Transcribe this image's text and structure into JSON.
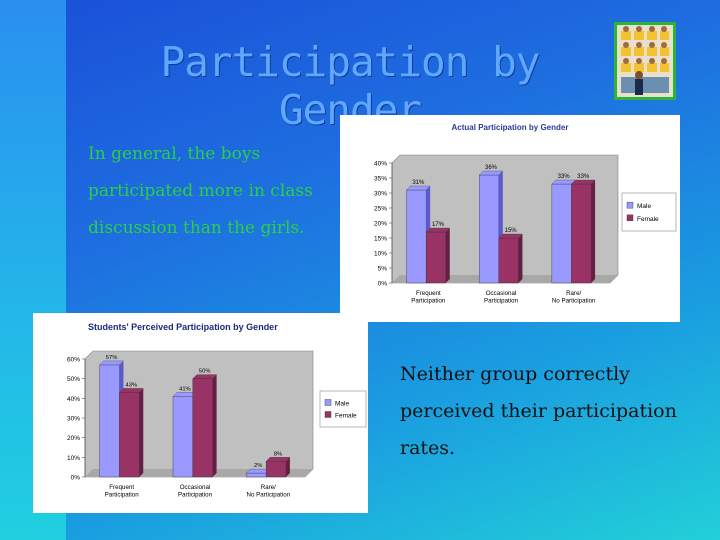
{
  "slide": {
    "title": "Participation by Gender",
    "text_left": "In general, the boys participated more in class discussion than the girls.",
    "text_right": "Neither group correctly perceived their participation rates."
  },
  "colors": {
    "male": "#9999ff",
    "female": "#993366",
    "plot_bg": "#c0c0c0"
  },
  "chart_data": [
    {
      "type": "bar",
      "title": "Actual Participation by Gender",
      "categories": [
        "Frequent Participation",
        "Occasional Participation",
        "Rare/ No Participation"
      ],
      "ylim": [
        0,
        40
      ],
      "yticks": [
        "0%",
        "5%",
        "10%",
        "15%",
        "20%",
        "25%",
        "30%",
        "35%",
        "40%"
      ],
      "series": [
        {
          "name": "Male",
          "values": [
            31,
            36,
            33
          ],
          "labels": [
            "31%",
            "36%",
            "33%"
          ]
        },
        {
          "name": "Female",
          "values": [
            17,
            15,
            33
          ],
          "labels": [
            "17%",
            "15%",
            "33%"
          ]
        }
      ],
      "legend": "right"
    },
    {
      "type": "bar",
      "title": "Students' Perceived Participation by Gender",
      "categories": [
        "Frequent Participation",
        "Occasional Participation",
        "Rare/ No Participation"
      ],
      "ylim": [
        0,
        60
      ],
      "yticks": [
        "0%",
        "10%",
        "20%",
        "30%",
        "40%",
        "50%",
        "60%"
      ],
      "series": [
        {
          "name": "Male",
          "values": [
            57,
            41,
            2
          ],
          "labels": [
            "57%",
            "41%",
            "2%"
          ]
        },
        {
          "name": "Female",
          "values": [
            43,
            50,
            8
          ],
          "labels": [
            "43%",
            "50%",
            "8%"
          ]
        }
      ],
      "legend": "right"
    }
  ]
}
